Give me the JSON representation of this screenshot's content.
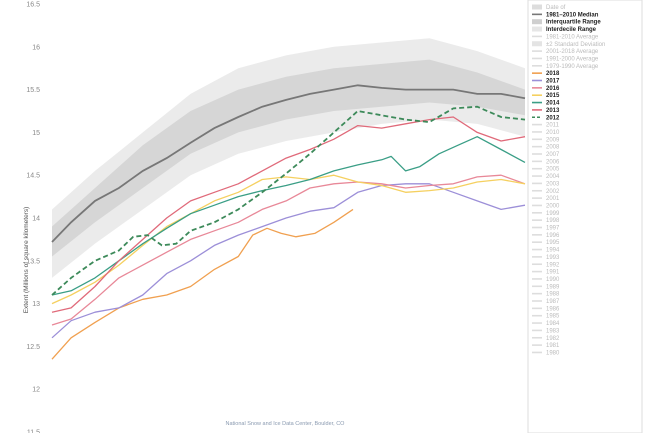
{
  "chart_data": {
    "type": "line",
    "title": "",
    "xlabel": "",
    "ylabel": "Extent (Millions of square kilometers)",
    "ylim": [
      11.5,
      16.5
    ],
    "yticks": [
      "16.5",
      "16",
      "15.5",
      "15",
      "14.5",
      "14",
      "13.5",
      "13",
      "12.5",
      "12",
      "11.5"
    ],
    "x_range": [
      1,
      100
    ],
    "grid": false,
    "credit": "National Snow and Ice Data Center, Boulder, CO",
    "bands": {
      "interdecile": {
        "upper": [
          [
            1,
            14.1
          ],
          [
            10,
            14.55
          ],
          [
            20,
            15.0
          ],
          [
            30,
            15.45
          ],
          [
            40,
            15.75
          ],
          [
            50,
            15.9
          ],
          [
            60,
            16.0
          ],
          [
            70,
            16.05
          ],
          [
            80,
            16.1
          ],
          [
            90,
            15.95
          ],
          [
            100,
            15.75
          ]
        ],
        "lower": [
          [
            1,
            13.3
          ],
          [
            10,
            13.7
          ],
          [
            20,
            14.1
          ],
          [
            30,
            14.5
          ],
          [
            40,
            14.75
          ],
          [
            50,
            14.9
          ],
          [
            60,
            15.0
          ],
          [
            70,
            15.1
          ],
          [
            80,
            15.15
          ],
          [
            90,
            15.1
          ],
          [
            100,
            14.95
          ]
        ]
      },
      "interquartile": {
        "upper": [
          [
            1,
            13.9
          ],
          [
            10,
            14.35
          ],
          [
            20,
            14.85
          ],
          [
            30,
            15.25
          ],
          [
            40,
            15.5
          ],
          [
            50,
            15.65
          ],
          [
            60,
            15.75
          ],
          [
            70,
            15.8
          ],
          [
            80,
            15.85
          ],
          [
            90,
            15.7
          ],
          [
            100,
            15.5
          ]
        ],
        "lower": [
          [
            1,
            13.55
          ],
          [
            10,
            13.95
          ],
          [
            20,
            14.35
          ],
          [
            30,
            14.75
          ],
          [
            40,
            15.0
          ],
          [
            50,
            15.15
          ],
          [
            60,
            15.25
          ],
          [
            70,
            15.3
          ],
          [
            80,
            15.35
          ],
          [
            90,
            15.3
          ],
          [
            100,
            15.2
          ]
        ]
      }
    },
    "median": {
      "name": "1981–2010 Median",
      "color": "#777777",
      "values": [
        [
          1,
          13.72
        ],
        [
          5,
          13.95
        ],
        [
          10,
          14.2
        ],
        [
          15,
          14.35
        ],
        [
          20,
          14.55
        ],
        [
          25,
          14.7
        ],
        [
          30,
          14.88
        ],
        [
          35,
          15.05
        ],
        [
          40,
          15.18
        ],
        [
          45,
          15.3
        ],
        [
          50,
          15.38
        ],
        [
          55,
          15.45
        ],
        [
          60,
          15.5
        ],
        [
          65,
          15.55
        ],
        [
          70,
          15.52
        ],
        [
          75,
          15.5
        ],
        [
          80,
          15.5
        ],
        [
          85,
          15.5
        ],
        [
          90,
          15.45
        ],
        [
          95,
          15.45
        ],
        [
          100,
          15.4
        ]
      ]
    },
    "series": [
      {
        "name": "2018",
        "color": "#f0a050",
        "dashed": false,
        "values": [
          [
            1,
            12.35
          ],
          [
            5,
            12.6
          ],
          [
            10,
            12.78
          ],
          [
            15,
            12.95
          ],
          [
            20,
            13.05
          ],
          [
            25,
            13.1
          ],
          [
            30,
            13.2
          ],
          [
            35,
            13.4
          ],
          [
            40,
            13.55
          ],
          [
            43,
            13.8
          ],
          [
            46,
            13.88
          ],
          [
            49,
            13.82
          ],
          [
            52,
            13.78
          ],
          [
            56,
            13.82
          ],
          [
            60,
            13.95
          ],
          [
            64,
            14.1
          ]
        ]
      },
      {
        "name": "2017",
        "color": "#9c8fd8",
        "dashed": false,
        "values": [
          [
            1,
            12.6
          ],
          [
            5,
            12.8
          ],
          [
            10,
            12.9
          ],
          [
            15,
            12.95
          ],
          [
            20,
            13.1
          ],
          [
            25,
            13.35
          ],
          [
            30,
            13.5
          ],
          [
            35,
            13.68
          ],
          [
            40,
            13.8
          ],
          [
            45,
            13.9
          ],
          [
            50,
            14.0
          ],
          [
            55,
            14.08
          ],
          [
            60,
            14.12
          ],
          [
            65,
            14.3
          ],
          [
            70,
            14.38
          ],
          [
            75,
            14.4
          ],
          [
            80,
            14.4
          ],
          [
            85,
            14.3
          ],
          [
            90,
            14.2
          ],
          [
            95,
            14.1
          ],
          [
            100,
            14.15
          ]
        ]
      },
      {
        "name": "2016",
        "color": "#e88898",
        "dashed": false,
        "values": [
          [
            1,
            12.75
          ],
          [
            5,
            12.82
          ],
          [
            10,
            13.05
          ],
          [
            15,
            13.3
          ],
          [
            20,
            13.45
          ],
          [
            25,
            13.6
          ],
          [
            30,
            13.75
          ],
          [
            35,
            13.85
          ],
          [
            40,
            13.95
          ],
          [
            45,
            14.1
          ],
          [
            50,
            14.2
          ],
          [
            55,
            14.35
          ],
          [
            60,
            14.4
          ],
          [
            65,
            14.42
          ],
          [
            70,
            14.4
          ],
          [
            75,
            14.35
          ],
          [
            80,
            14.38
          ],
          [
            85,
            14.4
          ],
          [
            90,
            14.48
          ],
          [
            95,
            14.5
          ],
          [
            100,
            14.4
          ]
        ]
      },
      {
        "name": "2015",
        "color": "#f5d060",
        "dashed": false,
        "values": [
          [
            1,
            13.0
          ],
          [
            5,
            13.1
          ],
          [
            10,
            13.25
          ],
          [
            15,
            13.45
          ],
          [
            20,
            13.68
          ],
          [
            25,
            13.9
          ],
          [
            30,
            14.05
          ],
          [
            35,
            14.2
          ],
          [
            40,
            14.3
          ],
          [
            45,
            14.45
          ],
          [
            50,
            14.48
          ],
          [
            55,
            14.45
          ],
          [
            60,
            14.5
          ],
          [
            65,
            14.42
          ],
          [
            70,
            14.38
          ],
          [
            75,
            14.3
          ],
          [
            80,
            14.32
          ],
          [
            85,
            14.35
          ],
          [
            90,
            14.42
          ],
          [
            95,
            14.45
          ],
          [
            100,
            14.4
          ]
        ]
      },
      {
        "name": "2014",
        "color": "#3a9e86",
        "dashed": false,
        "values": [
          [
            1,
            13.1
          ],
          [
            5,
            13.15
          ],
          [
            10,
            13.3
          ],
          [
            15,
            13.5
          ],
          [
            20,
            13.7
          ],
          [
            25,
            13.88
          ],
          [
            30,
            14.05
          ],
          [
            35,
            14.15
          ],
          [
            40,
            14.25
          ],
          [
            45,
            14.32
          ],
          [
            50,
            14.38
          ],
          [
            55,
            14.45
          ],
          [
            60,
            14.55
          ],
          [
            65,
            14.62
          ],
          [
            70,
            14.68
          ],
          [
            72,
            14.72
          ],
          [
            75,
            14.55
          ],
          [
            78,
            14.6
          ],
          [
            82,
            14.75
          ],
          [
            86,
            14.85
          ],
          [
            90,
            14.95
          ],
          [
            95,
            14.8
          ],
          [
            100,
            14.65
          ]
        ]
      },
      {
        "name": "2013",
        "color": "#e06a7a",
        "dashed": false,
        "values": [
          [
            1,
            12.9
          ],
          [
            5,
            12.95
          ],
          [
            10,
            13.2
          ],
          [
            15,
            13.5
          ],
          [
            20,
            13.75
          ],
          [
            25,
            14.0
          ],
          [
            30,
            14.2
          ],
          [
            35,
            14.3
          ],
          [
            40,
            14.4
          ],
          [
            45,
            14.55
          ],
          [
            50,
            14.7
          ],
          [
            55,
            14.8
          ],
          [
            60,
            14.92
          ],
          [
            65,
            15.08
          ],
          [
            70,
            15.05
          ],
          [
            75,
            15.1
          ],
          [
            80,
            15.15
          ],
          [
            85,
            15.18
          ],
          [
            90,
            15.0
          ],
          [
            95,
            14.9
          ],
          [
            100,
            14.95
          ]
        ]
      },
      {
        "name": "2012",
        "color": "#3d8a5a",
        "dashed": true,
        "values": [
          [
            1,
            13.1
          ],
          [
            5,
            13.3
          ],
          [
            10,
            13.5
          ],
          [
            15,
            13.62
          ],
          [
            18,
            13.78
          ],
          [
            21,
            13.8
          ],
          [
            24,
            13.68
          ],
          [
            27,
            13.7
          ],
          [
            30,
            13.85
          ],
          [
            35,
            13.95
          ],
          [
            40,
            14.1
          ],
          [
            45,
            14.3
          ],
          [
            50,
            14.52
          ],
          [
            55,
            14.75
          ],
          [
            60,
            15.0
          ],
          [
            65,
            15.25
          ],
          [
            70,
            15.2
          ],
          [
            75,
            15.15
          ],
          [
            80,
            15.12
          ],
          [
            85,
            15.28
          ],
          [
            90,
            15.3
          ],
          [
            95,
            15.18
          ],
          [
            100,
            15.15
          ]
        ]
      }
    ]
  },
  "legend": {
    "header_items": [
      {
        "label": "Date of",
        "style": "faded",
        "swatch": "box",
        "color": "#dddddd"
      },
      {
        "label": "1981–2010 Median",
        "style": "bold",
        "swatch": "line",
        "color": "#777777"
      },
      {
        "label": "Interquartile Range",
        "style": "bold",
        "swatch": "box",
        "color": "#cfcfcf"
      },
      {
        "label": "Interdecile Range",
        "style": "bold",
        "swatch": "box",
        "color": "#e6e6e6"
      },
      {
        "label": "1981-2010 Average",
        "style": "faded",
        "swatch": "line",
        "color": "#dddddd"
      },
      {
        "label": "±2 Standard Deviation",
        "style": "faded",
        "swatch": "box",
        "color": "#e4e4e4"
      },
      {
        "label": "2001-2018 Average",
        "style": "faded",
        "swatch": "line",
        "color": "#dddddd"
      },
      {
        "label": "1991-2000 Average",
        "style": "faded",
        "swatch": "line",
        "color": "#dddddd"
      },
      {
        "label": "1979-1990 Average",
        "style": "faded",
        "swatch": "line",
        "color": "#dddddd"
      }
    ],
    "year_items": [
      {
        "label": "2018",
        "color": "#f0a050"
      },
      {
        "label": "2017",
        "color": "#9c8fd8"
      },
      {
        "label": "2016",
        "color": "#e88898"
      },
      {
        "label": "2015",
        "color": "#f5d060"
      },
      {
        "label": "2014",
        "color": "#3a9e86"
      },
      {
        "label": "2013",
        "color": "#e06a7a"
      },
      {
        "label": "2012",
        "color": "#3d8a5a",
        "dashed": true
      }
    ],
    "faded_years": [
      "2011",
      "2010",
      "2009",
      "2008",
      "2007",
      "2006",
      "2005",
      "2004",
      "2003",
      "2002",
      "2001",
      "2000",
      "1999",
      "1998",
      "1997",
      "1996",
      "1995",
      "1994",
      "1993",
      "1992",
      "1991",
      "1990",
      "1989",
      "1988",
      "1987",
      "1986",
      "1985",
      "1984",
      "1983",
      "1982",
      "1981",
      "1980"
    ]
  }
}
